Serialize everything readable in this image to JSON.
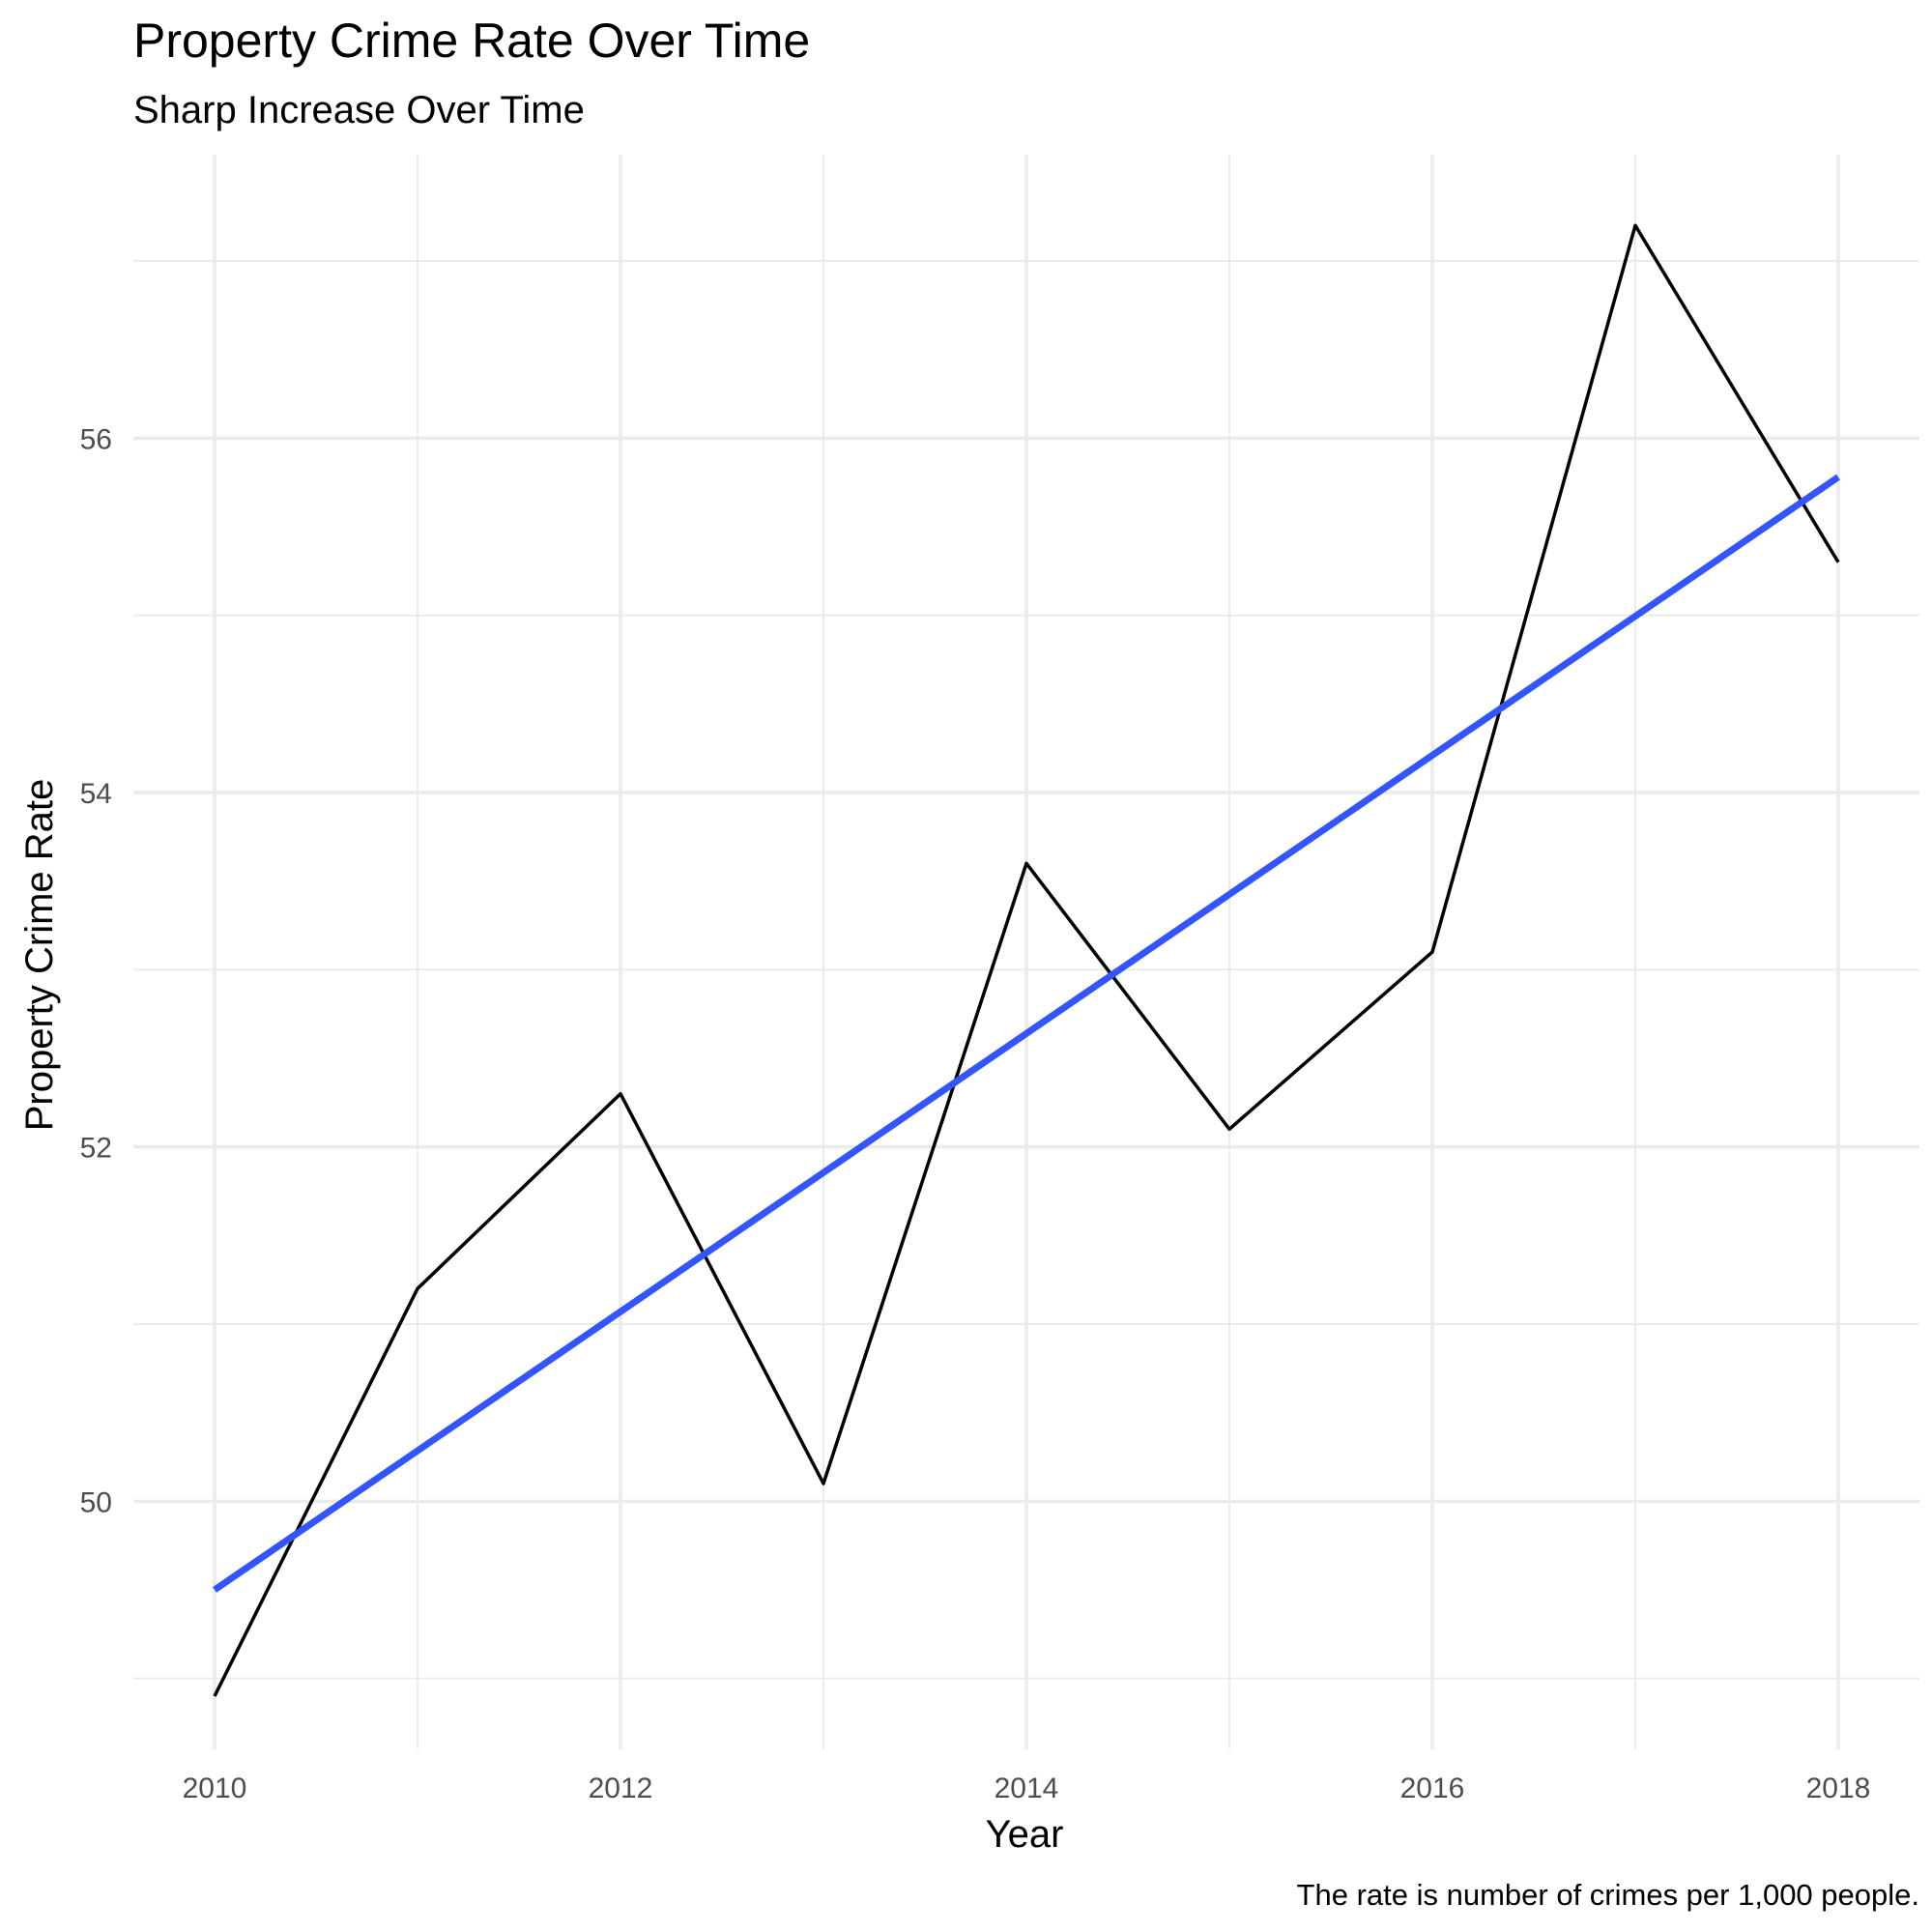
{
  "chart_data": {
    "type": "line",
    "title": "Property Crime Rate Over Time",
    "subtitle": "Sharp Increase Over Time",
    "xlabel": "Year",
    "ylabel": "Property Crime Rate",
    "caption": "The rate is number of crimes per 1,000 people.",
    "xlim": [
      2009.6,
      2018.4
    ],
    "ylim": [
      48.6,
      57.6
    ],
    "x_ticks": [
      2010,
      2012,
      2014,
      2016,
      2018
    ],
    "x_minor_ticks": [
      2011,
      2013,
      2015,
      2017
    ],
    "y_ticks": [
      50,
      52,
      54,
      56
    ],
    "y_minor_ticks": [
      49,
      51,
      53,
      55,
      57
    ],
    "grid": true,
    "series": [
      {
        "x": [
          2010,
          2011,
          2012,
          2013,
          2014,
          2015,
          2016,
          2017,
          2018
        ],
        "values": [
          48.9,
          51.2,
          52.3,
          50.1,
          53.6,
          52.1,
          53.1,
          57.2,
          55.3
        ],
        "color": "#000000"
      }
    ],
    "trend_line": {
      "x": [
        2010,
        2018
      ],
      "values": [
        49.5,
        55.78
      ],
      "color": "#3355ff"
    }
  }
}
